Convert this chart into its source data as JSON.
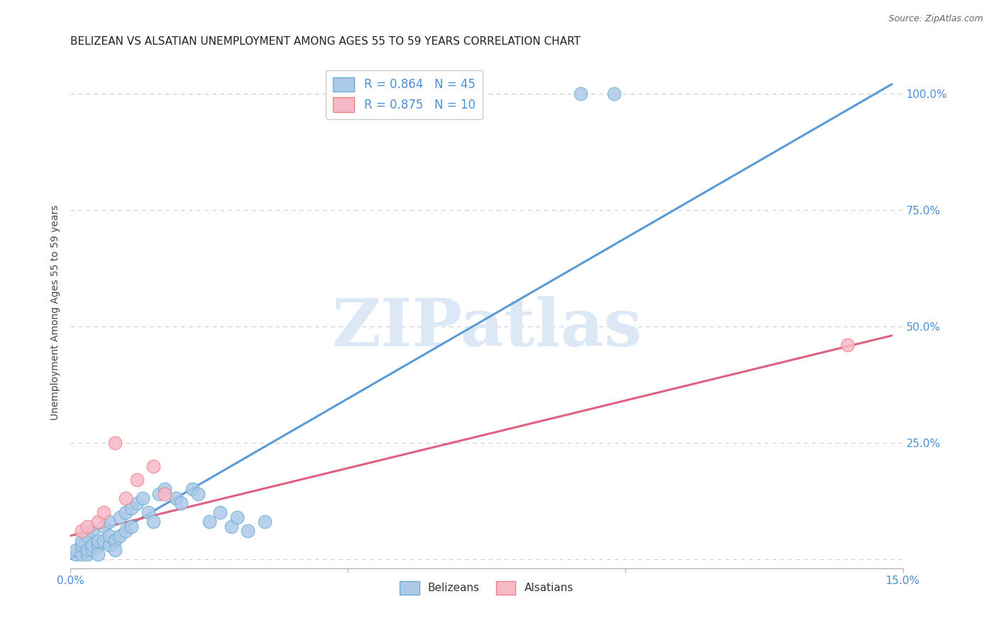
{
  "title": "BELIZEAN VS ALSATIAN UNEMPLOYMENT AMONG AGES 55 TO 59 YEARS CORRELATION CHART",
  "source": "Source: ZipAtlas.com",
  "ylabel_label": "Unemployment Among Ages 55 to 59 years",
  "xlim": [
    0.0,
    0.15
  ],
  "ylim": [
    -0.02,
    1.08
  ],
  "x_tick_positions": [
    0.0,
    0.05,
    0.1,
    0.15
  ],
  "x_tick_labels": [
    "0.0%",
    "",
    "",
    "15.0%"
  ],
  "y_tick_labels_right": [
    "",
    "25.0%",
    "50.0%",
    "75.0%",
    "100.0%"
  ],
  "y_ticks_right": [
    0.0,
    0.25,
    0.5,
    0.75,
    1.0
  ],
  "belizean_fill_color": "#adc9e8",
  "alsatian_fill_color": "#f7b8c8",
  "belizean_edge_color": "#6aaed6",
  "alsatian_edge_color": "#f08080",
  "belizean_line_color": "#5b9bd5",
  "alsatian_line_color": "#e06080",
  "legend_blue_label": "R = 0.864   N = 45",
  "legend_pink_label": "R = 0.875   N = 10",
  "watermark": "ZIPatlas",
  "belizean_scatter_x": [
    0.001,
    0.001,
    0.002,
    0.002,
    0.002,
    0.003,
    0.003,
    0.003,
    0.004,
    0.004,
    0.004,
    0.005,
    0.005,
    0.005,
    0.006,
    0.006,
    0.007,
    0.007,
    0.007,
    0.008,
    0.008,
    0.009,
    0.009,
    0.01,
    0.01,
    0.011,
    0.011,
    0.012,
    0.013,
    0.014,
    0.015,
    0.016,
    0.017,
    0.019,
    0.02,
    0.022,
    0.023,
    0.025,
    0.027,
    0.029,
    0.03,
    0.032,
    0.035,
    0.092,
    0.098
  ],
  "belizean_scatter_y": [
    0.01,
    0.02,
    0.01,
    0.03,
    0.04,
    0.01,
    0.02,
    0.05,
    0.02,
    0.03,
    0.06,
    0.03,
    0.04,
    0.01,
    0.04,
    0.07,
    0.03,
    0.05,
    0.08,
    0.04,
    0.02,
    0.05,
    0.09,
    0.06,
    0.1,
    0.07,
    0.11,
    0.12,
    0.13,
    0.1,
    0.08,
    0.14,
    0.15,
    0.13,
    0.12,
    0.15,
    0.14,
    0.08,
    0.1,
    0.07,
    0.09,
    0.06,
    0.08,
    1.0,
    1.0
  ],
  "alsatian_scatter_x": [
    0.002,
    0.003,
    0.005,
    0.006,
    0.008,
    0.01,
    0.012,
    0.015,
    0.017,
    0.14
  ],
  "alsatian_scatter_y": [
    0.06,
    0.07,
    0.08,
    0.1,
    0.25,
    0.13,
    0.17,
    0.2,
    0.14,
    0.46
  ],
  "belizean_trend_x": [
    0.0,
    0.148
  ],
  "belizean_trend_y": [
    0.0,
    1.02
  ],
  "alsatian_trend_x": [
    0.0,
    0.148
  ],
  "alsatian_trend_y": [
    0.05,
    0.48
  ],
  "title_fontsize": 11,
  "axis_label_fontsize": 10,
  "tick_fontsize": 11,
  "background_color": "#ffffff",
  "grid_color": "#cccccc",
  "title_color": "#222222",
  "source_color": "#666666",
  "watermark_color": "#dce8f5",
  "right_tick_color": "#4a90d9",
  "scatter_size": 180
}
